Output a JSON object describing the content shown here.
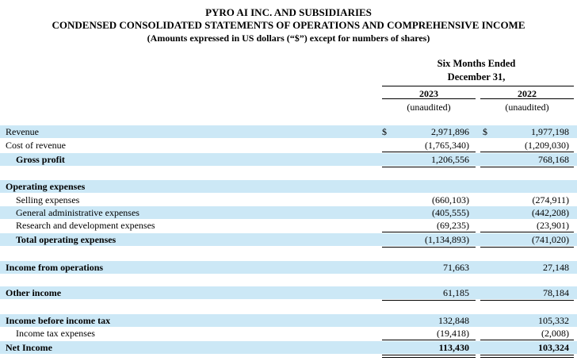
{
  "header": {
    "company": "PYRO AI INC. AND SUBSIDIARIES",
    "title": "CONDENSED CONSOLIDATED STATEMENTS OF OPERATIONS AND COMPREHENSIVE INCOME",
    "subtitle": "(Amounts expressed in US dollars (“$”) except for numbers of shares)"
  },
  "columns": {
    "period_line1": "Six Months Ended",
    "period_line2": "December 31,",
    "year1": "2023",
    "year2": "2022",
    "audit1": "(unaudited)",
    "audit2": "(unaudited)"
  },
  "currency_symbol": "$",
  "rows": {
    "revenue": {
      "label": "Revenue",
      "v2023": "2,971,896",
      "v2022": "1,977,198"
    },
    "cost_of_revenue": {
      "label": "Cost of revenue",
      "v2023": "(1,765,340)",
      "v2022": "(1,209,030)"
    },
    "gross_profit": {
      "label": "Gross profit",
      "v2023": "1,206,556",
      "v2022": "768,168"
    },
    "operating_expenses": {
      "label": "Operating expenses"
    },
    "selling": {
      "label": "Selling expenses",
      "v2023": "(660,103)",
      "v2022": "(274,911)"
    },
    "general_admin": {
      "label": "General administrative expenses",
      "v2023": "(405,555)",
      "v2022": "(442,208)"
    },
    "research_dev": {
      "label": "Research and development expenses",
      "v2023": "(69,235)",
      "v2022": "(23,901)"
    },
    "total_opex": {
      "label": "Total operating expenses",
      "v2023": "(1,134,893)",
      "v2022": "(741,020)"
    },
    "income_from_ops": {
      "label": "Income from operations",
      "v2023": "71,663",
      "v2022": "27,148"
    },
    "other_income": {
      "label": "Other income",
      "v2023": "61,185",
      "v2022": "78,184"
    },
    "income_before_tax": {
      "label": "Income before income tax",
      "v2023": "132,848",
      "v2022": "105,332"
    },
    "income_tax": {
      "label": "Income tax expenses",
      "v2023": "(19,418)",
      "v2022": "(2,008)"
    },
    "net_income": {
      "label": "Net Income",
      "v2023": "113,430",
      "v2022": "103,324"
    }
  }
}
